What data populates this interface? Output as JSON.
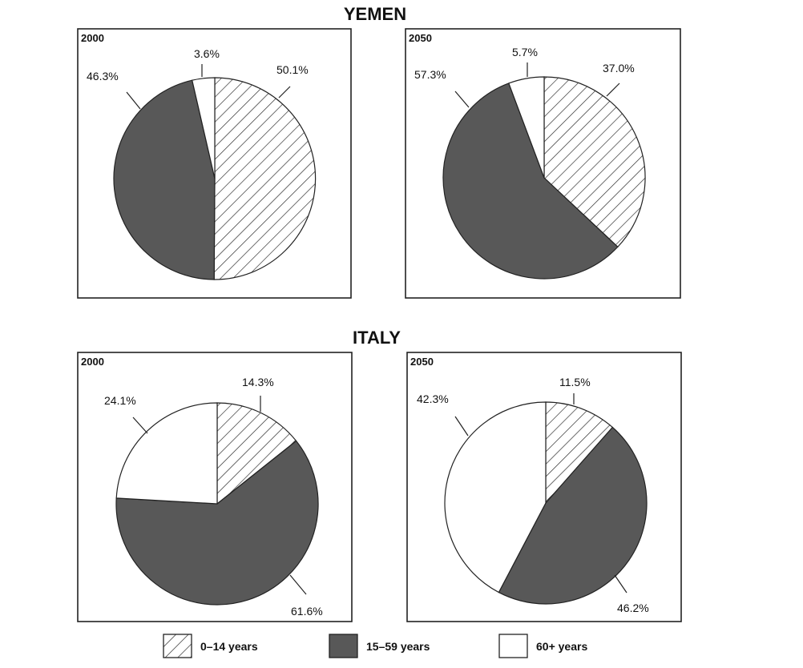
{
  "chart_data": [
    {
      "type": "pie",
      "group": "YEMEN",
      "title": "2000",
      "labels": [
        "0–14 years",
        "15–59 years",
        "60+ years"
      ],
      "values": [
        50.1,
        46.3,
        3.6
      ],
      "value_labels": [
        "50.1%",
        "46.3%",
        "3.6%"
      ]
    },
    {
      "type": "pie",
      "group": "YEMEN",
      "title": "2050",
      "labels": [
        "0–14 years",
        "15–59 years",
        "60+ years"
      ],
      "values": [
        37.0,
        57.3,
        5.7
      ],
      "value_labels": [
        "37.0%",
        "57.3%",
        "5.7%"
      ]
    },
    {
      "type": "pie",
      "group": "ITALY",
      "title": "2000",
      "labels": [
        "0–14 years",
        "15–59 years",
        "60+ years"
      ],
      "values": [
        14.3,
        61.6,
        24.1
      ],
      "value_labels": [
        "14.3%",
        "61.6%",
        "24.1%"
      ]
    },
    {
      "type": "pie",
      "group": "ITALY",
      "title": "2050",
      "labels": [
        "0–14 years",
        "15–59 years",
        "60+ years"
      ],
      "values": [
        11.5,
        46.2,
        42.3
      ],
      "value_labels": [
        "11.5%",
        "46.2%",
        "42.3%"
      ]
    }
  ],
  "groups": {
    "yemen": "YEMEN",
    "italy": "ITALY"
  },
  "legend": [
    {
      "label": "0–14 years",
      "fill": "hatch"
    },
    {
      "label": "15–59 years",
      "fill": "#585858"
    },
    {
      "label": "60+ years",
      "fill": "#ffffff"
    }
  ],
  "colors": {
    "hatch_line": "#222222",
    "dark_slice": "#585858",
    "white_slice": "#ffffff",
    "outline": "#222222"
  }
}
